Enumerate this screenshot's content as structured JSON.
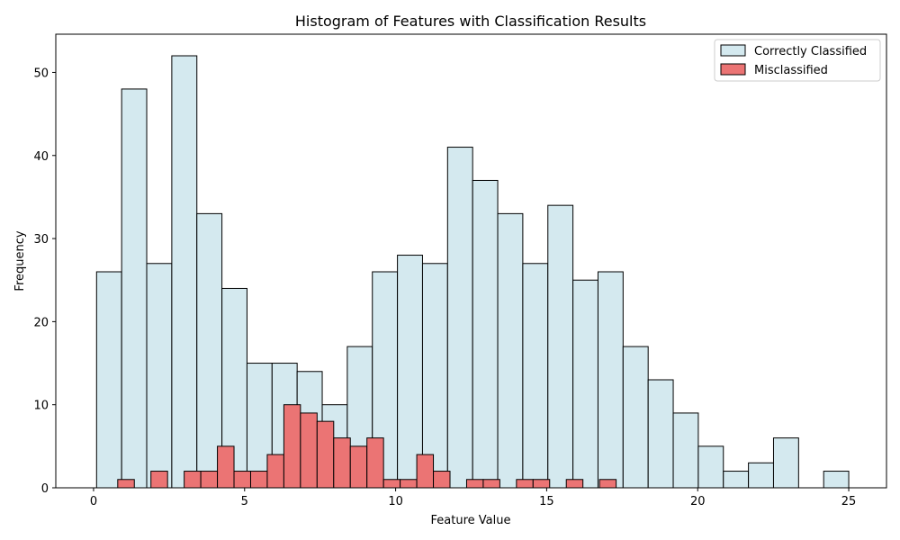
{
  "chart_data": {
    "type": "bar",
    "title": "Histogram of Features with Classification Results",
    "xlabel": "Feature Value",
    "ylabel": "Frequency",
    "xlim": [
      -1.25,
      26.25
    ],
    "ylim": [
      0,
      54.6
    ],
    "xticks": [
      0,
      5,
      10,
      15,
      20,
      25
    ],
    "yticks": [
      0,
      10,
      20,
      30,
      40,
      50
    ],
    "grid": false,
    "legend_position": "top-right",
    "series": [
      {
        "name": "Correctly Classified",
        "color": "#d4e9ef",
        "edgecolor": "#000000",
        "bin_edges": [
          0.1,
          0.93,
          1.76,
          2.59,
          3.42,
          4.25,
          5.08,
          5.91,
          6.74,
          7.57,
          8.4,
          9.23,
          10.06,
          10.89,
          11.72,
          12.55,
          13.38,
          14.21,
          15.04,
          15.87,
          16.7,
          17.53,
          18.36,
          19.19,
          20.02,
          20.85,
          21.68,
          22.51,
          23.34,
          24.17,
          25.0
        ],
        "values": [
          26,
          48,
          27,
          52,
          33,
          24,
          15,
          15,
          14,
          10,
          17,
          26,
          28,
          27,
          41,
          37,
          33,
          27,
          34,
          25,
          26,
          17,
          13,
          9,
          5,
          2,
          3,
          6,
          0,
          2
        ]
      },
      {
        "name": "Misclassified",
        "color": "#eb7474",
        "edgecolor": "#000000",
        "bin_edges": [
          0.8,
          1.35,
          1.9,
          2.45,
          3.0,
          3.55,
          4.1,
          4.65,
          5.2,
          5.75,
          6.3,
          6.85,
          7.4,
          7.95,
          8.5,
          9.05,
          9.6,
          10.15,
          10.7,
          11.25,
          11.8,
          12.35,
          12.9,
          13.45,
          14.0,
          14.55,
          15.1,
          15.65,
          16.2,
          16.75,
          17.3
        ],
        "values": [
          1,
          0,
          2,
          0,
          2,
          2,
          5,
          2,
          2,
          4,
          10,
          9,
          8,
          6,
          5,
          6,
          1,
          1,
          4,
          2,
          0,
          1,
          1,
          0,
          1,
          1,
          0,
          1,
          0,
          1
        ]
      }
    ]
  }
}
